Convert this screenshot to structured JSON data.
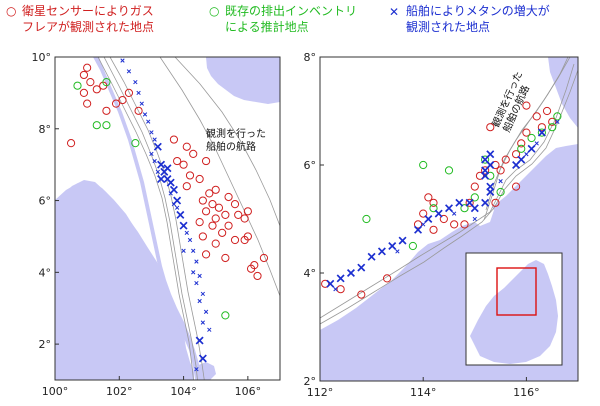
{
  "legend": {
    "flare_line1": "衛星センサーによりガス",
    "flare_line2": "フレアが観測された地点",
    "inventory_line1": "既存の排出インベントリ",
    "inventory_line2": "による推計地点",
    "methane_line1": "船舶によりメタンの増大が",
    "methane_line2": "観測された地点",
    "flare_symbol": "○",
    "inventory_symbol": "○",
    "methane_symbol": "✕"
  },
  "colors": {
    "flare": "#d02020",
    "inventory": "#22bb22",
    "methane": "#1c2fd0",
    "land": "#c8c8f5",
    "route": "#9a9a9a"
  },
  "left_map": {
    "route_label_line1": "観測を行った",
    "route_label_line2": "船舶の航路",
    "x_range": [
      100,
      107
    ],
    "y_range": [
      1,
      10
    ],
    "x_ticks": [
      "100°",
      "102°",
      "104°",
      "106°"
    ],
    "y_ticks": [
      "2°",
      "4°",
      "6°",
      "8°",
      "10°"
    ],
    "flares": [
      [
        101.0,
        9.7
      ],
      [
        100.9,
        9.5
      ],
      [
        101.1,
        9.3
      ],
      [
        101.3,
        9.1
      ],
      [
        100.9,
        9.0
      ],
      [
        101.5,
        9.2
      ],
      [
        101.0,
        8.7
      ],
      [
        101.6,
        8.5
      ],
      [
        101.9,
        8.7
      ],
      [
        102.1,
        8.8
      ],
      [
        102.3,
        9.0
      ],
      [
        102.6,
        8.5
      ],
      [
        100.5,
        7.6
      ],
      [
        103.7,
        7.7
      ],
      [
        104.1,
        7.5
      ],
      [
        103.8,
        7.1
      ],
      [
        104.3,
        7.3
      ],
      [
        104.0,
        7.0
      ],
      [
        104.7,
        7.1
      ],
      [
        104.2,
        6.7
      ],
      [
        104.5,
        6.6
      ],
      [
        104.1,
        6.4
      ],
      [
        104.8,
        6.2
      ],
      [
        105.0,
        6.3
      ],
      [
        104.6,
        6.0
      ],
      [
        104.9,
        5.9
      ],
      [
        105.4,
        6.1
      ],
      [
        105.1,
        5.8
      ],
      [
        105.6,
        5.9
      ],
      [
        104.7,
        5.7
      ],
      [
        105.0,
        5.5
      ],
      [
        105.3,
        5.6
      ],
      [
        105.7,
        5.6
      ],
      [
        105.9,
        5.5
      ],
      [
        106.0,
        5.7
      ],
      [
        104.5,
        5.4
      ],
      [
        104.9,
        5.3
      ],
      [
        105.4,
        5.3
      ],
      [
        105.2,
        5.1
      ],
      [
        104.6,
        5.0
      ],
      [
        105.6,
        4.9
      ],
      [
        105.9,
        4.9
      ],
      [
        106.0,
        5.0
      ],
      [
        105.0,
        4.8
      ],
      [
        104.7,
        4.5
      ],
      [
        105.3,
        4.4
      ],
      [
        106.2,
        4.2
      ],
      [
        106.5,
        4.4
      ],
      [
        106.3,
        3.9
      ],
      [
        106.1,
        4.1
      ]
    ],
    "inventory": [
      [
        100.7,
        9.2
      ],
      [
        101.6,
        9.3
      ],
      [
        101.3,
        8.1
      ],
      [
        101.6,
        8.1
      ],
      [
        102.5,
        7.6
      ],
      [
        105.3,
        2.8
      ]
    ],
    "methane_big": [
      [
        103.2,
        7.5
      ],
      [
        103.3,
        7.0
      ],
      [
        103.4,
        6.8
      ],
      [
        103.5,
        6.6
      ],
      [
        103.6,
        6.5
      ],
      [
        103.3,
        6.6
      ],
      [
        103.5,
        6.9
      ],
      [
        103.7,
        6.3
      ],
      [
        103.8,
        6.0
      ],
      [
        103.9,
        5.6
      ],
      [
        104.0,
        5.3
      ],
      [
        104.5,
        2.1
      ],
      [
        104.6,
        1.6
      ]
    ],
    "methane_small": [
      [
        102.1,
        9.9
      ],
      [
        102.3,
        9.6
      ],
      [
        102.5,
        9.3
      ],
      [
        102.6,
        9.0
      ],
      [
        102.7,
        8.7
      ],
      [
        102.8,
        8.4
      ],
      [
        102.9,
        8.2
      ],
      [
        103.0,
        7.9
      ],
      [
        103.1,
        7.7
      ],
      [
        103.0,
        7.3
      ],
      [
        103.1,
        7.1
      ],
      [
        103.2,
        6.8
      ],
      [
        103.6,
        6.2
      ],
      [
        103.7,
        5.9
      ],
      [
        103.8,
        5.8
      ],
      [
        104.1,
        5.1
      ],
      [
        104.2,
        4.9
      ],
      [
        104.3,
        4.6
      ],
      [
        104.0,
        4.6
      ],
      [
        104.4,
        4.3
      ],
      [
        104.3,
        4.0
      ],
      [
        104.5,
        3.9
      ],
      [
        104.4,
        3.7
      ],
      [
        104.6,
        3.4
      ],
      [
        104.5,
        3.2
      ],
      [
        104.7,
        2.9
      ],
      [
        104.6,
        2.6
      ],
      [
        104.8,
        2.4
      ],
      [
        104.4,
        1.3
      ]
    ]
  },
  "right_map": {
    "route_label_line1": "観測を行った",
    "route_label_line2": "船舶の航路",
    "x_range": [
      112,
      117
    ],
    "y_range": [
      2,
      8
    ],
    "x_ticks": [
      "112°",
      "114°",
      "116°"
    ],
    "y_ticks": [
      "2°",
      "4°",
      "6°",
      "8°"
    ],
    "flares": [
      [
        112.1,
        3.8
      ],
      [
        112.4,
        3.7
      ],
      [
        112.8,
        3.6
      ],
      [
        113.3,
        3.9
      ],
      [
        113.9,
        4.9
      ],
      [
        114.0,
        5.1
      ],
      [
        114.2,
        4.8
      ],
      [
        114.4,
        5.0
      ],
      [
        114.6,
        4.9
      ],
      [
        114.9,
        5.3
      ],
      [
        115.0,
        5.6
      ],
      [
        115.1,
        5.8
      ],
      [
        115.2,
        5.9
      ],
      [
        115.4,
        6.0
      ],
      [
        115.5,
        5.9
      ],
      [
        115.6,
        6.1
      ],
      [
        115.8,
        6.2
      ],
      [
        115.9,
        6.4
      ],
      [
        116.0,
        6.6
      ],
      [
        116.2,
        6.9
      ],
      [
        116.3,
        6.7
      ],
      [
        116.4,
        7.0
      ],
      [
        116.0,
        7.1
      ],
      [
        116.5,
        6.8
      ],
      [
        115.3,
        6.7
      ],
      [
        114.1,
        5.4
      ],
      [
        114.2,
        5.3
      ],
      [
        114.8,
        4.9
      ],
      [
        115.4,
        5.3
      ],
      [
        115.8,
        5.6
      ]
    ],
    "inventory": [
      [
        112.9,
        5.0
      ],
      [
        113.8,
        4.5
      ],
      [
        114.0,
        6.0
      ],
      [
        114.5,
        5.9
      ],
      [
        114.8,
        5.2
      ],
      [
        115.0,
        5.4
      ],
      [
        115.3,
        5.8
      ],
      [
        115.5,
        5.5
      ],
      [
        115.9,
        6.3
      ],
      [
        116.1,
        6.5
      ],
      [
        116.3,
        6.6
      ],
      [
        116.5,
        6.7
      ],
      [
        116.6,
        6.9
      ],
      [
        114.2,
        5.2
      ],
      [
        115.2,
        6.1
      ]
    ],
    "methane_big": [
      [
        112.2,
        3.8
      ],
      [
        112.4,
        3.9
      ],
      [
        112.6,
        4.0
      ],
      [
        112.8,
        4.1
      ],
      [
        113.0,
        4.3
      ],
      [
        113.2,
        4.4
      ],
      [
        113.4,
        4.5
      ],
      [
        113.6,
        4.6
      ],
      [
        113.9,
        4.8
      ],
      [
        114.1,
        5.0
      ],
      [
        114.3,
        5.1
      ],
      [
        114.5,
        5.2
      ],
      [
        114.7,
        5.3
      ],
      [
        114.9,
        5.3
      ],
      [
        115.0,
        5.2
      ],
      [
        115.2,
        5.3
      ],
      [
        115.3,
        5.5
      ],
      [
        115.3,
        5.6
      ],
      [
        115.2,
        5.9
      ],
      [
        115.3,
        6.0
      ],
      [
        115.2,
        6.1
      ],
      [
        115.3,
        6.2
      ],
      [
        115.2,
        5.8
      ],
      [
        115.8,
        6.0
      ],
      [
        115.9,
        6.1
      ],
      [
        116.1,
        6.3
      ],
      [
        116.3,
        6.6
      ]
    ],
    "methane_small": [
      [
        112.3,
        3.7
      ],
      [
        113.5,
        4.4
      ],
      [
        114.0,
        4.9
      ],
      [
        114.6,
        5.1
      ],
      [
        115.0,
        5.0
      ],
      [
        115.5,
        5.7
      ],
      [
        116.0,
        6.2
      ],
      [
        116.2,
        6.4
      ],
      [
        116.6,
        6.8
      ]
    ]
  }
}
